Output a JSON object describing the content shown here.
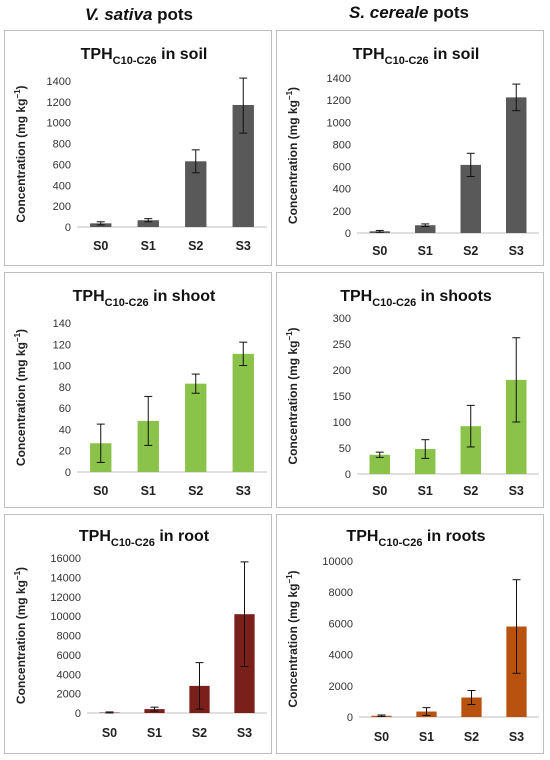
{
  "columns": [
    {
      "italic": "V. sativa",
      "rest": " pots"
    },
    {
      "italic": "S. cereale",
      "rest": " pots"
    }
  ],
  "chart_data": [
    {
      "type": "bar",
      "title_main": "TPH",
      "title_sub": "C10-C26",
      "title_tail": " in soil",
      "ylabel_main": "Concentration (mg kg",
      "ylabel_sup": "−1",
      "ylabel_end": ")",
      "categories": [
        "S0",
        "S1",
        "S2",
        "S3"
      ],
      "values": [
        35,
        65,
        630,
        1170
      ],
      "errors": [
        15,
        15,
        110,
        270
      ],
      "ylim": [
        0,
        1400
      ],
      "yticks": [
        0,
        200,
        400,
        600,
        800,
        1000,
        1200,
        1400
      ],
      "color": "#595959"
    },
    {
      "type": "bar",
      "title_main": "TPH",
      "title_sub": "C10-C26",
      "title_tail": " in soil",
      "ylabel_main": "Concentration (mg kg",
      "ylabel_sup": "−1",
      "ylabel_end": ")",
      "categories": [
        "S0",
        "S1",
        "S2",
        "S3"
      ],
      "values": [
        15,
        70,
        615,
        1225
      ],
      "errors": [
        8,
        12,
        105,
        120
      ],
      "ylim": [
        0,
        1400
      ],
      "yticks": [
        0,
        200,
        400,
        600,
        800,
        1000,
        1200,
        1400
      ],
      "color": "#595959"
    },
    {
      "type": "bar",
      "title_main": "TPH",
      "title_sub": "C10-C26",
      "title_tail": " in shoot",
      "ylabel_main": "Concentration (mg kg",
      "ylabel_sup": "−1",
      "ylabel_end": ")",
      "categories": [
        "S0",
        "S1",
        "S2",
        "S3"
      ],
      "values": [
        27,
        48,
        83,
        111
      ],
      "errors": [
        18,
        23,
        9,
        11
      ],
      "ylim": [
        0,
        140
      ],
      "yticks": [
        0,
        20,
        40,
        60,
        80,
        100,
        120,
        140
      ],
      "color": "#8BC34A"
    },
    {
      "type": "bar",
      "title_main": "TPH",
      "title_sub": "C10-C26",
      "title_tail": " in shoots",
      "ylabel_main": "Concentration (mg kg",
      "ylabel_sup": "−1",
      "ylabel_end": ")",
      "categories": [
        "S0",
        "S1",
        "S2",
        "S3"
      ],
      "values": [
        37,
        48,
        92,
        181
      ],
      "errors": [
        5,
        18,
        40,
        81
      ],
      "ylim": [
        0,
        300
      ],
      "yticks": [
        0,
        50,
        100,
        150,
        200,
        250,
        300
      ],
      "color": "#8BC34A"
    },
    {
      "type": "bar",
      "title_main": "TPH",
      "title_sub": "C10-C26",
      "title_tail": " in root",
      "ylabel_main": "Concentration (mg kg",
      "ylabel_sup": "−1",
      "ylabel_end": ")",
      "categories": [
        "S0",
        "S1",
        "S2",
        "S3"
      ],
      "values": [
        50,
        400,
        2800,
        10200
      ],
      "errors": [
        60,
        200,
        2400,
        5400
      ],
      "ylim": [
        0,
        16000
      ],
      "yticks": [
        0,
        2000,
        4000,
        6000,
        8000,
        10000,
        12000,
        14000,
        16000
      ],
      "color": "#7B1F1A"
    },
    {
      "type": "bar",
      "title_main": "TPH",
      "title_sub": "C10-C26",
      "title_tail": " in roots",
      "ylabel_main": "Concentration (mg kg",
      "ylabel_sup": "−1",
      "ylabel_end": ")",
      "categories": [
        "S0",
        "S1",
        "S2",
        "S3"
      ],
      "values": [
        80,
        350,
        1250,
        5800
      ],
      "errors": [
        50,
        250,
        450,
        3000
      ],
      "ylim": [
        0,
        10000
      ],
      "yticks": [
        0,
        2000,
        4000,
        6000,
        8000,
        10000
      ],
      "color": "#B8520E"
    }
  ]
}
